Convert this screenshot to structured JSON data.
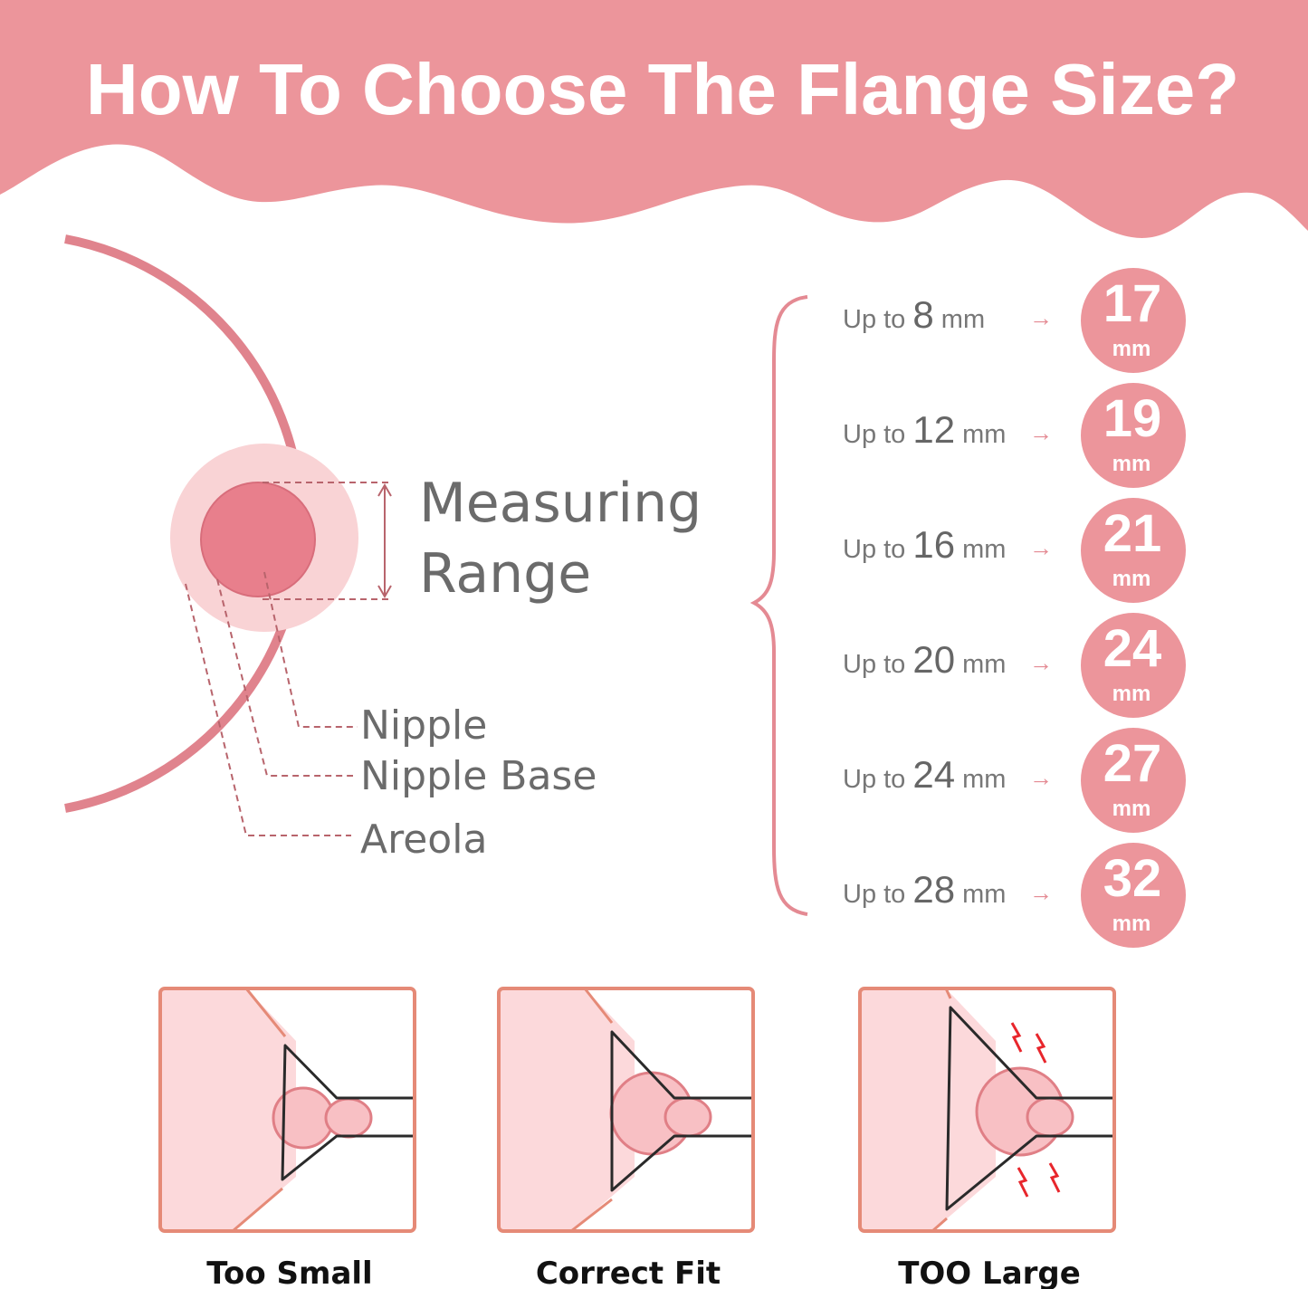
{
  "header": {
    "title": "How To Choose The Flange Size?"
  },
  "colors": {
    "brand_pink": "#ec959b",
    "nipple": "#e87f8c",
    "areola": "#f9d3d5",
    "outline": "#e0838d",
    "zap": "#e8262c"
  },
  "diagram": {
    "measuring_label_line1": "Measuring",
    "measuring_label_line2": "Range",
    "parts": [
      "Nipple",
      "Nipple Base",
      "Areola"
    ]
  },
  "size_table": {
    "prefix": "Up to",
    "unit": "mm",
    "arrow": "→",
    "rows": [
      {
        "measure": "8",
        "flange": "17"
      },
      {
        "measure": "12",
        "flange": "19"
      },
      {
        "measure": "16",
        "flange": "21"
      },
      {
        "measure": "20",
        "flange": "24"
      },
      {
        "measure": "24",
        "flange": "27"
      },
      {
        "measure": "28",
        "flange": "32"
      }
    ]
  },
  "fit_examples": [
    {
      "label": "Too Small",
      "icon": "flange-too-small"
    },
    {
      "label": "Correct Fit",
      "icon": "flange-correct-fit"
    },
    {
      "label": "TOO Large",
      "icon": "flange-too-large"
    }
  ]
}
